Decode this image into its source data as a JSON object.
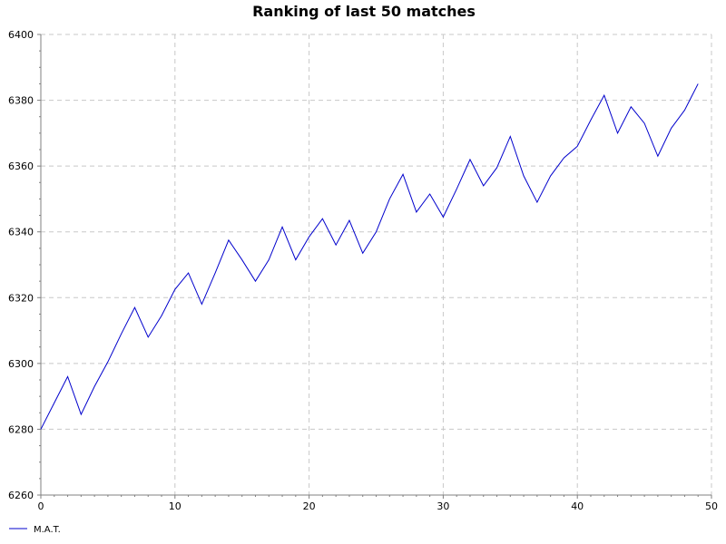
{
  "chart_data": {
    "type": "line",
    "title": "Ranking of last 50 matches",
    "xlabel": "",
    "ylabel": "",
    "xlim": [
      0,
      50
    ],
    "ylim": [
      6260,
      6400
    ],
    "x_ticks": [
      "0",
      "10",
      "20",
      "30",
      "40",
      "50"
    ],
    "y_ticks": [
      "6260",
      "6280",
      "6300",
      "6320",
      "6340",
      "6360",
      "6380",
      "6400"
    ],
    "grid": true,
    "legend_position": "bottom-left",
    "series": [
      {
        "name": "M.A.T.",
        "color": "#0000cc",
        "x": [
          0,
          1,
          2,
          3,
          4,
          5,
          6,
          7,
          8,
          9,
          10,
          11,
          12,
          13,
          14,
          15,
          16,
          17,
          18,
          19,
          20,
          21,
          22,
          23,
          24,
          25,
          26,
          27,
          28,
          29,
          30,
          31,
          32,
          33,
          34,
          35,
          36,
          37,
          38,
          39,
          40,
          41,
          42,
          43,
          44,
          45,
          46,
          47,
          48,
          49
        ],
        "values": [
          6280,
          6288,
          6296,
          6284.5,
          6293,
          6300.5,
          6309,
          6317,
          6308,
          6314.5,
          6322.5,
          6327.5,
          6318,
          6327.5,
          6337.5,
          6331.5,
          6325,
          6331.5,
          6341.5,
          6331.5,
          6338.5,
          6344,
          6336,
          6343.5,
          6333.5,
          6340,
          6350,
          6357.5,
          6346,
          6351.5,
          6344.5,
          6353,
          6362,
          6354,
          6359.5,
          6369,
          6357,
          6349,
          6357,
          6362.5,
          6366,
          6374,
          6381.5,
          6370,
          6378,
          6373,
          6363,
          6371.5,
          6377,
          6385
        ]
      }
    ]
  }
}
